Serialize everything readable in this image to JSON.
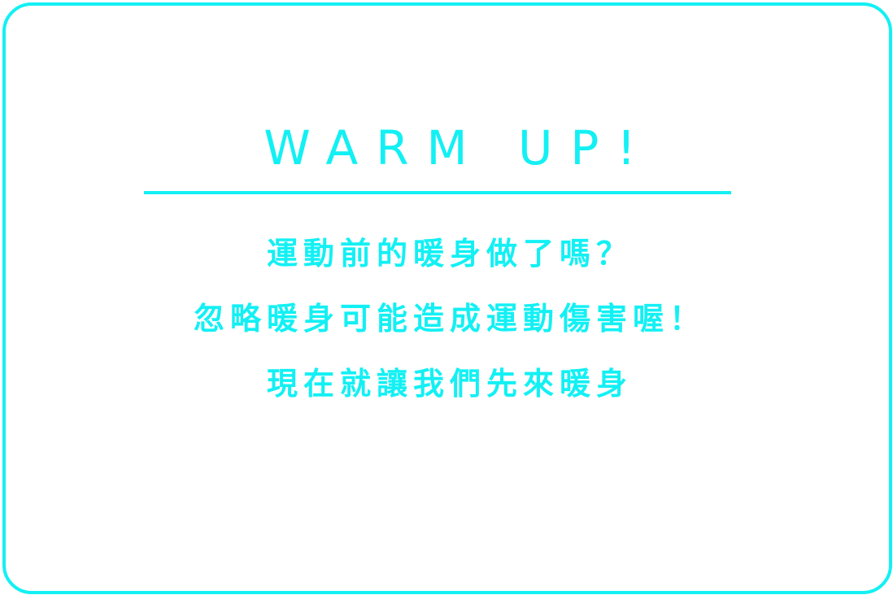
{
  "card": {
    "title": "WARM UP!",
    "lines": [
      "運動前的暖身做了嗎？",
      "忽略暖身可能造成運動傷害喔！",
      "現在就讓我們先來暖身"
    ]
  },
  "colors": {
    "accent": "#13f0f4",
    "background": "#ffffff"
  }
}
